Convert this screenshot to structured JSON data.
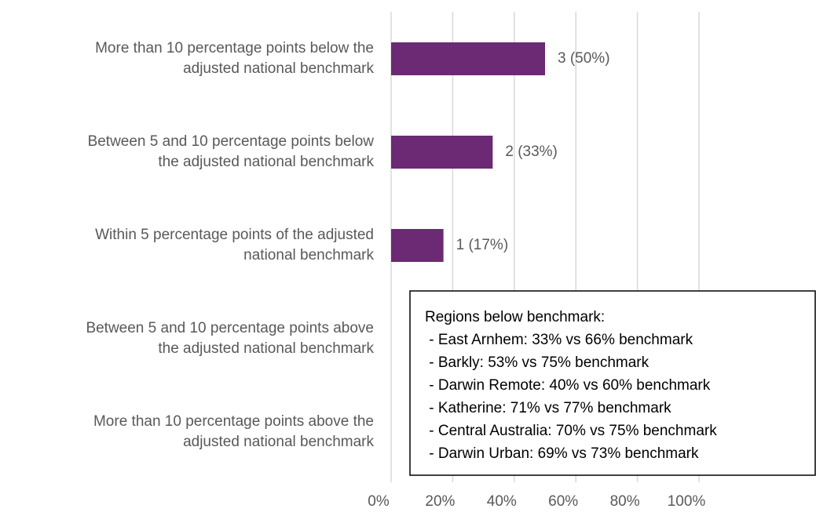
{
  "chart_data": {
    "type": "hbar",
    "categories": [
      [
        "More than 10 percentage points below the",
        "adjusted national benchmark"
      ],
      [
        "Between 5 and 10 percentage points below",
        "the adjusted national benchmark"
      ],
      [
        "Within 5 percentage points of the adjusted",
        "national benchmark"
      ],
      [
        "Between 5 and 10 percentage points above",
        "the adjusted national benchmark"
      ],
      [
        "More than 10 percentage points above the",
        "adjusted national benchmark"
      ]
    ],
    "values": [
      50,
      33,
      17,
      0,
      0
    ],
    "value_labels": [
      "3 (50%)",
      "2 (33%)",
      "1 (17%)",
      null,
      null
    ],
    "color": "#6b2a73",
    "xlim": [
      0,
      100
    ],
    "xticks": [
      {
        "value": 0,
        "label": "0%"
      },
      {
        "value": 20,
        "label": "20%"
      },
      {
        "value": 40,
        "label": "40%"
      },
      {
        "value": 60,
        "label": "60%"
      },
      {
        "value": 80,
        "label": "80%"
      },
      {
        "value": 100,
        "label": "100%"
      }
    ],
    "grid": true,
    "annotation": {
      "title": "Regions below benchmark:",
      "lines": [
        " - East Arnhem: 33% vs 66% benchmark",
        " - Barkly: 53% vs 75% benchmark",
        " - Darwin Remote: 40% vs 60% benchmark",
        " - Katherine: 71% vs 77% benchmark",
        " - Central Australia: 70% vs 75% benchmark",
        " - Darwin Urban: 69% vs 73% benchmark"
      ]
    }
  }
}
